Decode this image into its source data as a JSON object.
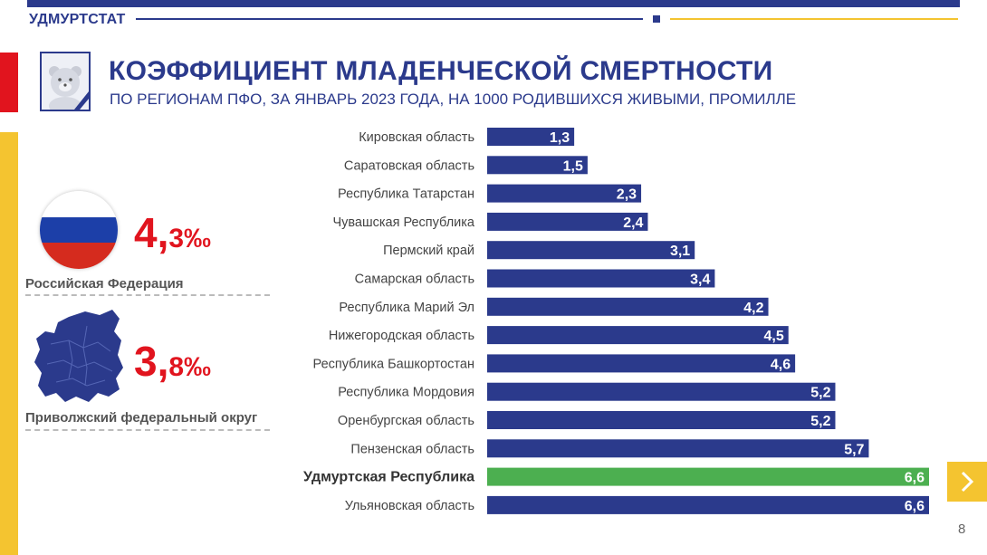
{
  "header": {
    "brand": "УДМУРТСТАТ",
    "title": "КОЭФФИЦИЕНТ МЛАДЕНЧЕСКОЙ СМЕРТНОСТИ",
    "subtitle": "ПО РЕГИОНАМ ПФО, ЗА ЯНВАРЬ 2023 ГОДА, НА 1000 РОДИВШИХСЯ ЖИВЫМИ, ПРОМИЛЛЕ"
  },
  "summary": {
    "russia": {
      "value": "4,",
      "value_fraction": "3‰",
      "label": "Российская Федерация"
    },
    "pfo": {
      "value": "3,",
      "value_fraction": "8‰",
      "label": "Приволжский федеральный округ"
    }
  },
  "page": {
    "number": "8"
  },
  "colors": {
    "bar": "#2b3a8c",
    "highlight": "#4caf50",
    "accent": "#e1141e",
    "yellow": "#f4c430"
  },
  "icons": {
    "logo": "teddy-bear-icon",
    "next": "chevron-right-icon",
    "flag": "russia-flag-icon",
    "map": "volga-district-map-icon"
  },
  "chart_data": {
    "type": "bar",
    "orientation": "horizontal",
    "categories": [
      "Кировская область",
      "Саратовская область",
      "Республика Татарстан",
      "Чувашская Республика",
      "Пермский край",
      "Самарская область",
      "Республика Марий Эл",
      "Нижегородская область",
      "Республика Башкортостан",
      "Республика Мордовия",
      "Оренбургская область",
      "Пензенская область",
      "Удмуртская Республика",
      "Ульяновская область"
    ],
    "values": [
      1.3,
      1.5,
      2.3,
      2.4,
      3.1,
      3.4,
      4.2,
      4.5,
      4.6,
      5.2,
      5.2,
      5.7,
      6.6,
      6.6
    ],
    "value_labels": [
      "1,3",
      "1,5",
      "2,3",
      "2,4",
      "3,1",
      "3,4",
      "4,2",
      "4,5",
      "4,6",
      "5,2",
      "5,2",
      "5,7",
      "6,6",
      "6,6"
    ],
    "highlight": "Удмуртская Республика",
    "xlim": [
      0,
      6.6
    ]
  }
}
